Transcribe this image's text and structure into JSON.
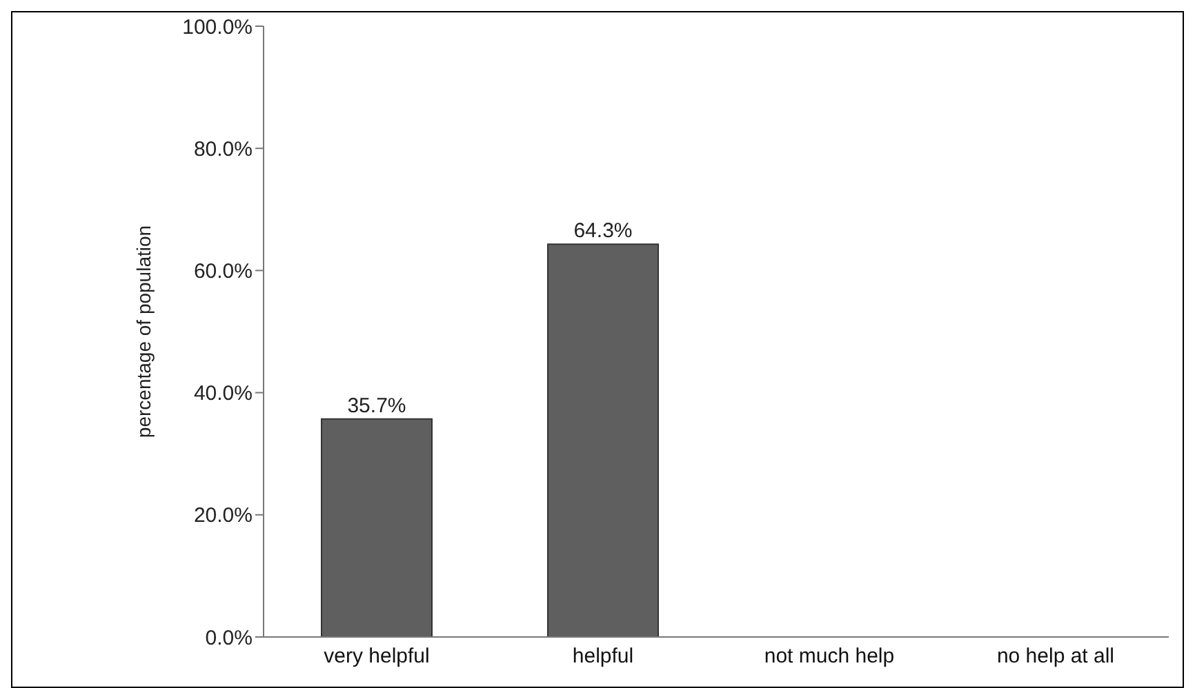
{
  "chart_data": {
    "type": "bar",
    "ylabel": "percentage of population",
    "categories": [
      "very helpful",
      "helpful",
      "not much help",
      "no help at all"
    ],
    "values": [
      35.7,
      64.3,
      0,
      0
    ],
    "value_labels": [
      "35.7%",
      "64.3%",
      null,
      null
    ],
    "color": "#5f5f5f",
    "ylim": [
      0,
      100
    ],
    "yticks": [
      {
        "value": 0,
        "label": "0.0%"
      },
      {
        "value": 20,
        "label": "20.0%"
      },
      {
        "value": 40,
        "label": "40.0%"
      },
      {
        "value": 60,
        "label": "60.0%"
      },
      {
        "value": 80,
        "label": "80.0%"
      },
      {
        "value": 100,
        "label": "100.0%"
      }
    ],
    "grid": false,
    "legend": false
  }
}
